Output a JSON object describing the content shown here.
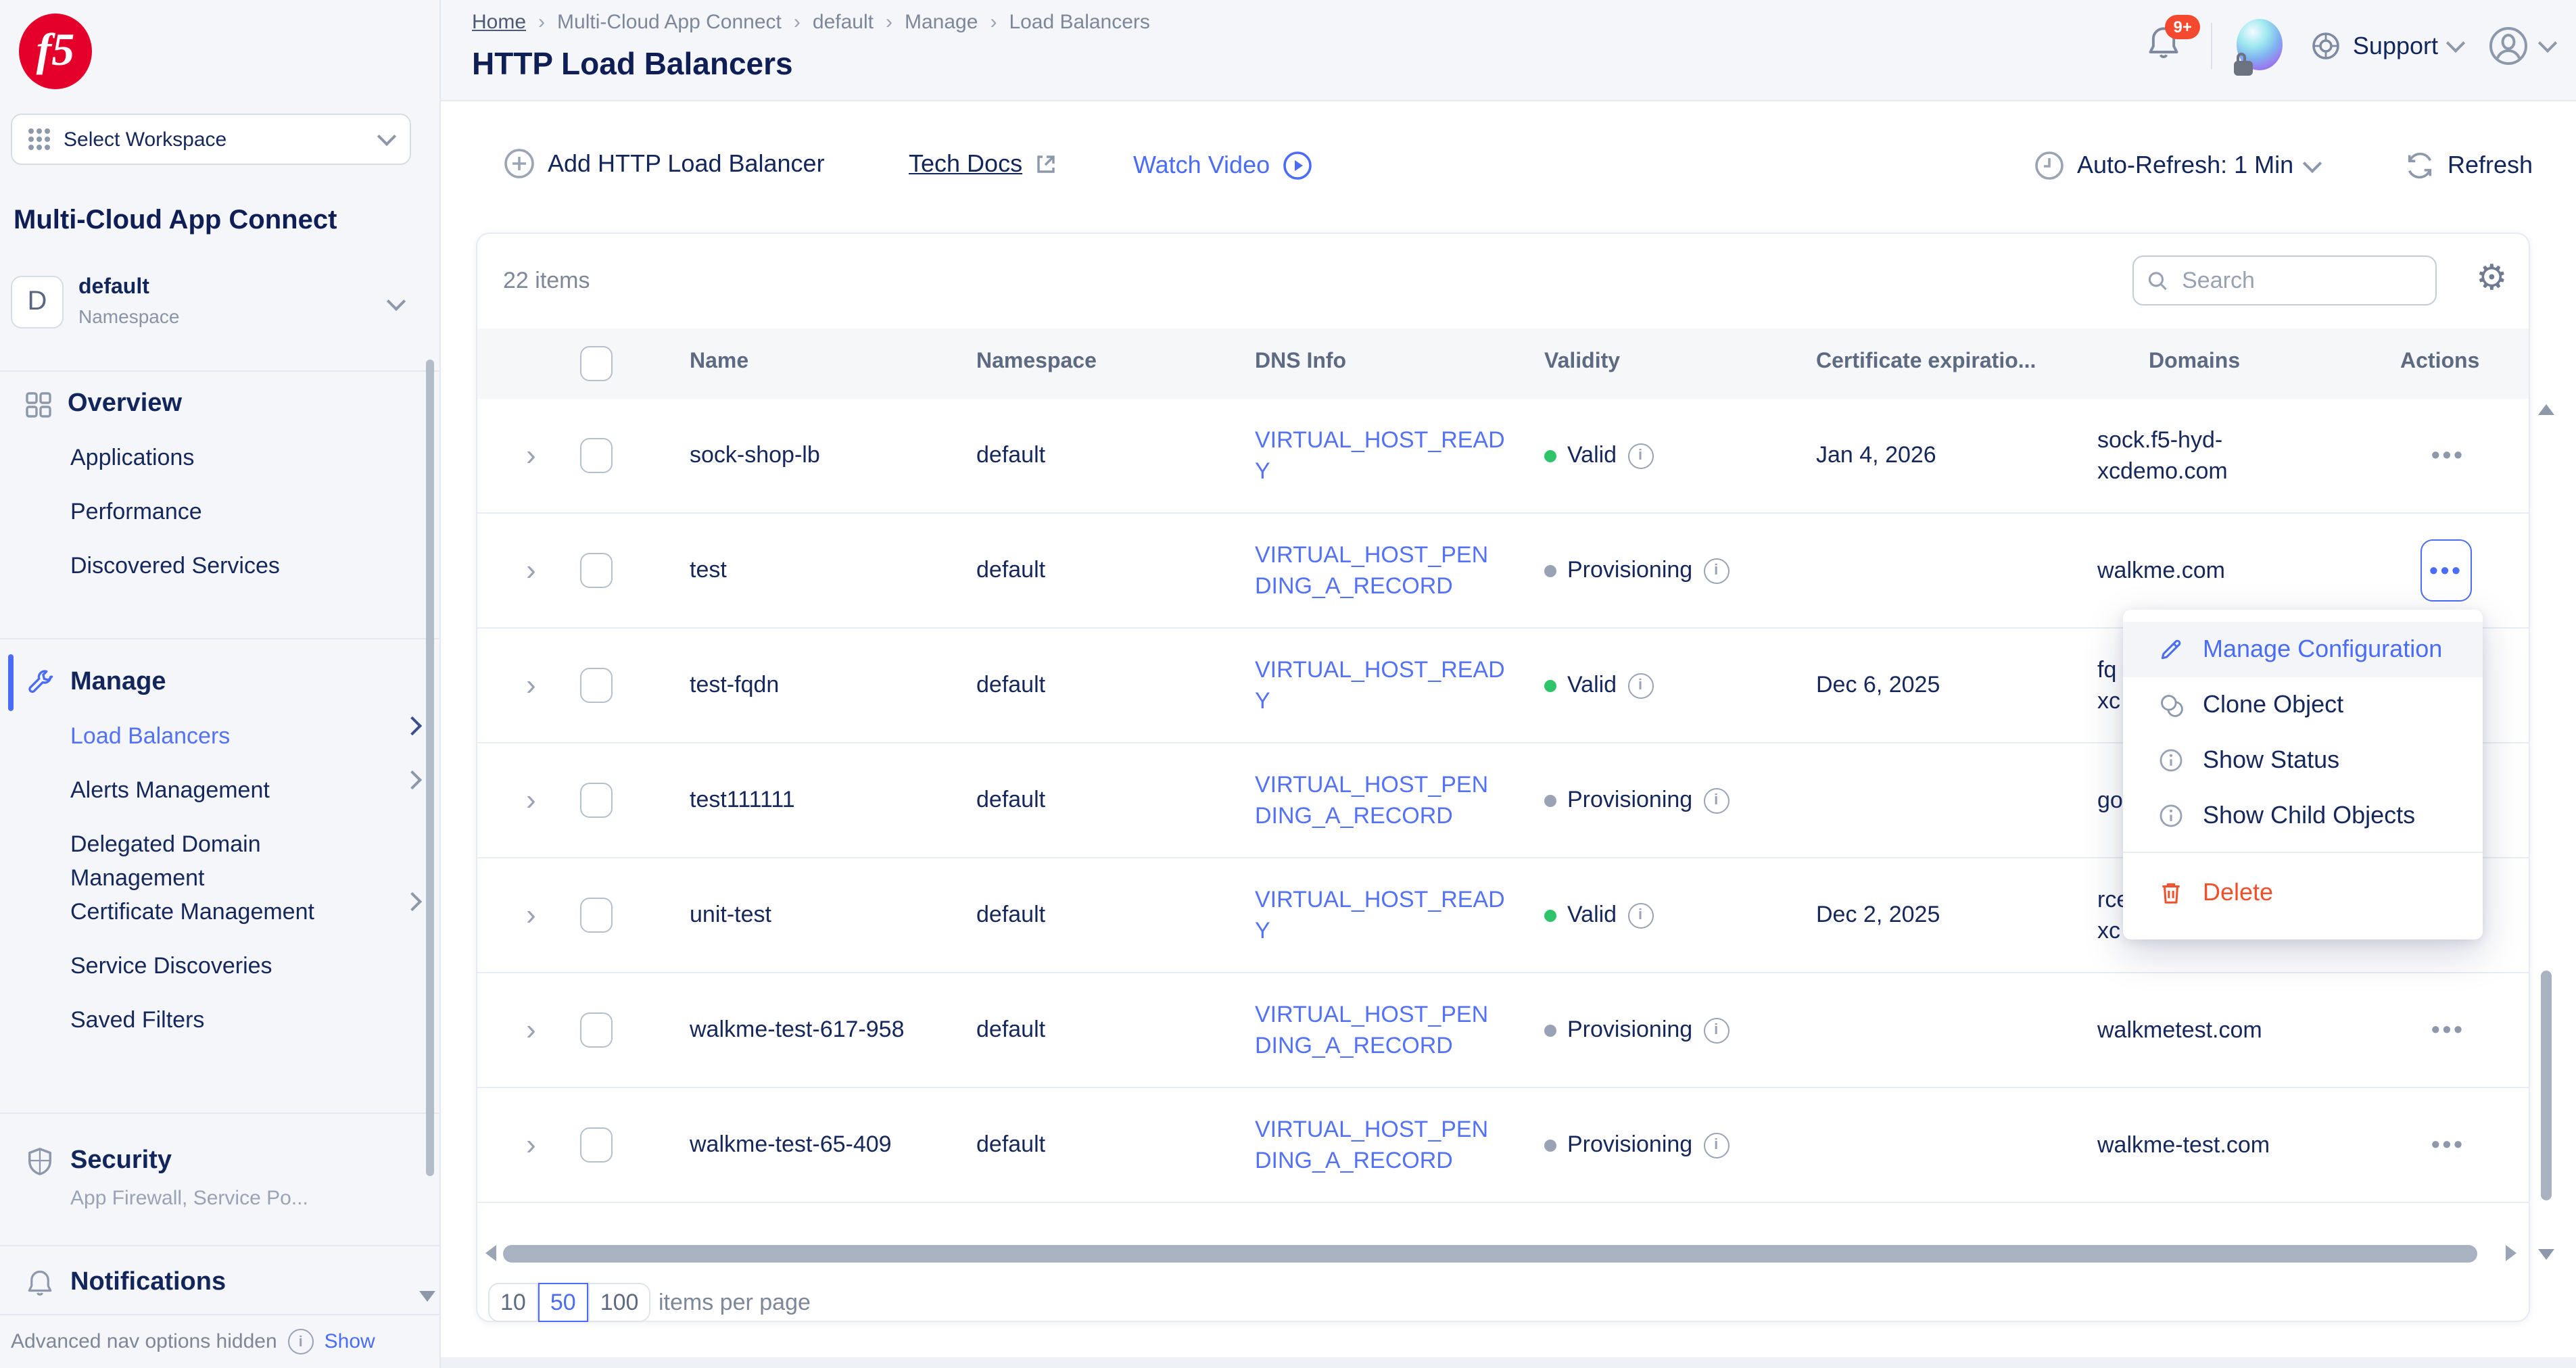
{
  "brand": {
    "logo_text": "f5"
  },
  "sidebar": {
    "workspace_selector": {
      "label": "Select Workspace"
    },
    "product_title": "Multi-Cloud App Connect",
    "namespace": {
      "initial": "D",
      "name": "default",
      "label": "Namespace"
    },
    "sections": [
      {
        "title": "Overview",
        "icon": "grid-icon",
        "items": [
          {
            "label": "Applications"
          },
          {
            "label": "Performance"
          },
          {
            "label": "Discovered Services"
          }
        ]
      },
      {
        "title": "Manage",
        "icon": "wrench-icon",
        "active": true,
        "items": [
          {
            "label": "Load Balancers",
            "active": true,
            "has_submenu": true
          },
          {
            "label": "Alerts Management",
            "has_submenu": true
          },
          {
            "label": "Delegated Domain Management"
          },
          {
            "label": "Certificate Management",
            "has_submenu": true
          },
          {
            "label": "Service Discoveries"
          },
          {
            "label": "Saved Filters"
          }
        ]
      },
      {
        "title": "Security",
        "icon": "shield-icon",
        "subtitle": "App Firewall, Service Po..."
      },
      {
        "title": "Notifications",
        "icon": "bell-icon"
      }
    ],
    "footer": {
      "text": "Advanced nav options hidden",
      "action": "Show"
    }
  },
  "header": {
    "breadcrumb": [
      "Home",
      "Multi-Cloud App Connect",
      "default",
      "Manage",
      "Load Balancers"
    ],
    "page_title": "HTTP Load Balancers",
    "notifications_badge": "9+",
    "support_label": "Support"
  },
  "toolbar": {
    "add_label": "Add HTTP Load Balancer",
    "tech_docs_label": "Tech Docs",
    "watch_video_label": "Watch Video",
    "auto_refresh_label": "Auto-Refresh: 1 Min",
    "refresh_label": "Refresh"
  },
  "table": {
    "items_count": "22 items",
    "search_placeholder": "Search",
    "columns": [
      "Name",
      "Namespace",
      "DNS Info",
      "Validity",
      "Certificate expiratio...",
      "Domains",
      "Actions"
    ],
    "rows": [
      {
        "name": "sock-shop-lb",
        "namespace": "default",
        "dns_info": [
          "VIRTUAL_HOST_READ",
          "Y"
        ],
        "validity": "Valid",
        "validity_state": "valid",
        "cert_expiration": "Jan 4, 2026",
        "domains": [
          "sock.f5-hyd-",
          "xcdemo.com"
        ]
      },
      {
        "name": "test",
        "namespace": "default",
        "dns_info": [
          "VIRTUAL_HOST_PEN",
          "DING_A_RECORD"
        ],
        "validity": "Provisioning",
        "validity_state": "provisioning",
        "cert_expiration": "",
        "domains": [
          "walkme.com"
        ],
        "actions_active": true
      },
      {
        "name": "test-fqdn",
        "namespace": "default",
        "dns_info": [
          "VIRTUAL_HOST_READ",
          "Y"
        ],
        "validity": "Valid",
        "validity_state": "valid",
        "cert_expiration": "Dec 6, 2025",
        "domains": [
          "fq",
          "xc"
        ]
      },
      {
        "name": "test111111",
        "namespace": "default",
        "dns_info": [
          "VIRTUAL_HOST_PEN",
          "DING_A_RECORD"
        ],
        "validity": "Provisioning",
        "validity_state": "provisioning",
        "cert_expiration": "",
        "domains": [
          "go"
        ]
      },
      {
        "name": "unit-test",
        "namespace": "default",
        "dns_info": [
          "VIRTUAL_HOST_READ",
          "Y"
        ],
        "validity": "Valid",
        "validity_state": "valid",
        "cert_expiration": "Dec 2, 2025",
        "domains": [
          "rce",
          "xc"
        ]
      },
      {
        "name": "walkme-test-617-958",
        "namespace": "default",
        "dns_info": [
          "VIRTUAL_HOST_PEN",
          "DING_A_RECORD"
        ],
        "validity": "Provisioning",
        "validity_state": "provisioning",
        "cert_expiration": "",
        "domains": [
          "walkmetest.com"
        ]
      },
      {
        "name": "walkme-test-65-409",
        "namespace": "default",
        "dns_info": [
          "VIRTUAL_HOST_PEN",
          "DING_A_RECORD"
        ],
        "validity": "Provisioning",
        "validity_state": "provisioning",
        "cert_expiration": "",
        "domains": [
          "walkme-test.com"
        ]
      }
    ]
  },
  "context_menu": {
    "items": [
      {
        "label": "Manage Configuration",
        "icon": "pencil-icon",
        "highlighted": true
      },
      {
        "label": "Clone Object",
        "icon": "clone-icon"
      },
      {
        "label": "Show Status",
        "icon": "info-icon"
      },
      {
        "label": "Show Child Objects",
        "icon": "info-icon"
      },
      {
        "label": "Delete",
        "icon": "trash-icon",
        "danger": true
      }
    ]
  },
  "pagination": {
    "options": [
      "10",
      "50",
      "100"
    ],
    "selected": "50",
    "label": "items per page"
  },
  "colors": {
    "accent_blue": "#4a6cf7",
    "link_blue": "#5472f8",
    "valid_green": "#2fc36a",
    "provisioning_gray": "#9aa3b5",
    "danger_red": "#f2502b",
    "brand_red": "#e4002b",
    "badge_red": "#f4492e",
    "navy_text": "#16275b"
  }
}
